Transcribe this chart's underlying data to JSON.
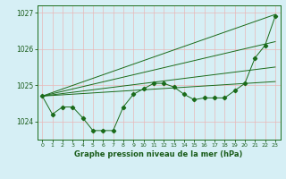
{
  "xlabel": "Graphe pression niveau de la mer (hPa)",
  "x": [
    0,
    1,
    2,
    3,
    4,
    5,
    6,
    7,
    8,
    9,
    10,
    11,
    12,
    13,
    14,
    15,
    16,
    17,
    18,
    19,
    20,
    21,
    22,
    23
  ],
  "line_main": [
    1024.7,
    1024.2,
    1024.4,
    1024.4,
    1024.1,
    1023.75,
    1023.75,
    1023.75,
    1024.4,
    1024.75,
    1024.9,
    1025.05,
    1025.05,
    1024.95,
    1024.75,
    1024.6,
    1024.65,
    1024.65,
    1024.65,
    1024.85,
    1025.05,
    1025.75,
    1026.1,
    1026.9
  ],
  "trend_lines": [
    {
      "x": [
        0,
        23
      ],
      "y": [
        1024.7,
        1026.95
      ]
    },
    {
      "x": [
        0,
        23
      ],
      "y": [
        1024.7,
        1026.2
      ]
    },
    {
      "x": [
        0,
        23
      ],
      "y": [
        1024.7,
        1025.5
      ]
    },
    {
      "x": [
        0,
        23
      ],
      "y": [
        1024.7,
        1025.1
      ]
    }
  ],
  "ylim": [
    1023.5,
    1027.2
  ],
  "xlim": [
    -0.5,
    23.5
  ],
  "yticks": [
    1024,
    1025,
    1026,
    1027
  ],
  "xticks": [
    0,
    1,
    2,
    3,
    4,
    5,
    6,
    7,
    8,
    9,
    10,
    11,
    12,
    13,
    14,
    15,
    16,
    17,
    18,
    19,
    20,
    21,
    22,
    23
  ],
  "line_color": "#1a6b1a",
  "bg_color": "#d6eff5",
  "grid_color": "#c8e4e8",
  "font_color": "#1a5c1a",
  "xlabel_color": "#1a5c1a"
}
